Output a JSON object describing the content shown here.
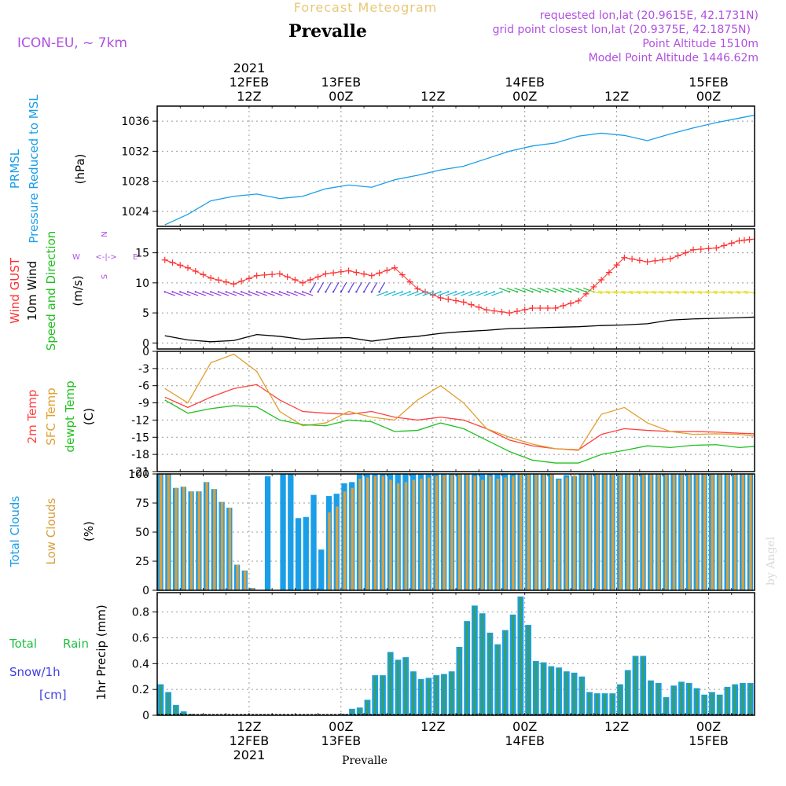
{
  "header": {
    "title_top": "Forecast Meteogram",
    "location": "Prevalle",
    "model": "ICON-EU, ~ 7km",
    "requested": "requested lon,lat (20.9615E, 42.1731N)",
    "grid": "grid point closest lon,lat (20.9375E, 42.1875N)",
    "point_alt": "Point Altitude 1510m",
    "model_alt": "Model Point Altitude 1446.62m",
    "footer_location": "Prevalle",
    "credit": "by Angel",
    "compass": {
      "n": "N",
      "s": "S",
      "w": "W",
      "e": "E",
      "arrow_h": "<-|->"
    }
  },
  "colors": {
    "pressure": "#1e90ff",
    "gust": "#ff3030",
    "wind": "#000000",
    "temp2m": "#ff4040",
    "sfc": "#e0a030",
    "dew": "#20c020",
    "total_cloud": "#1a9ee8",
    "low_cloud": "#d8a040",
    "rain": "#20c040",
    "snow": "#4040e0",
    "label_purple": "#b050e0"
  },
  "time_axis": {
    "top_labels": [
      {
        "hour": 12,
        "lines": [
          "2021",
          "12FEB",
          "12Z"
        ]
      },
      {
        "hour": 24,
        "lines": [
          "13FEB",
          "00Z"
        ]
      },
      {
        "hour": 36,
        "lines": [
          "12Z"
        ]
      },
      {
        "hour": 48,
        "lines": [
          "14FEB",
          "00Z"
        ]
      },
      {
        "hour": 60,
        "lines": [
          "12Z"
        ]
      },
      {
        "hour": 72,
        "lines": [
          "15FEB",
          "00Z"
        ]
      }
    ],
    "bottom_labels": [
      {
        "hour": 12,
        "lines": [
          "12Z",
          "12FEB",
          "2021"
        ]
      },
      {
        "hour": 24,
        "lines": [
          "00Z",
          "13FEB"
        ]
      },
      {
        "hour": 36,
        "lines": [
          "12Z"
        ]
      },
      {
        "hour": 48,
        "lines": [
          "00Z",
          "14FEB"
        ]
      },
      {
        "hour": 60,
        "lines": [
          "12Z"
        ]
      },
      {
        "hour": 72,
        "lines": [
          "00Z",
          "15FEB"
        ]
      }
    ]
  },
  "panels": {
    "pressure": {
      "label1": "PRMSL",
      "label2": "Pressure Reduced to MSL",
      "unit": "(hPa)",
      "ticks": [
        "1024",
        "1028",
        "1032",
        "1036"
      ]
    },
    "wind": {
      "label1": "Wind GUST",
      "label2": "10m Wind",
      "label3": "Speed and Direction",
      "unit": "(m/s)",
      "ticks": [
        "0",
        "5",
        "10",
        "15"
      ]
    },
    "temp": {
      "label1": "2m Temp",
      "label2": "SFC Temp",
      "label3": "dewpt Temp",
      "unit": "(C)",
      "ticks": [
        "-21",
        "-18",
        "-15",
        "-12",
        "-9",
        "-6",
        "-3",
        "0"
      ]
    },
    "cloud": {
      "label1": "Total Clouds",
      "label2": "Low Clouds",
      "unit": "(%)",
      "ticks": [
        "0",
        "25",
        "50",
        "75",
        "100"
      ]
    },
    "precip": {
      "label1": "Total",
      "label1b": "Rain",
      "label2": "Snow/1h",
      "label3": "[cm]",
      "unit": "1hr Precip (mm)",
      "ticks": [
        "0",
        "0.2",
        "0.4",
        "0.6",
        "0.8"
      ]
    }
  },
  "chart_data": [
    {
      "type": "line",
      "name": "pressure",
      "ylim": [
        1022,
        1038
      ],
      "x": [
        1,
        4,
        7,
        10,
        13,
        16,
        19,
        22,
        25,
        28,
        31,
        34,
        37,
        40,
        43,
        46,
        49,
        52,
        55,
        58,
        61,
        64,
        67,
        70,
        73,
        76,
        78
      ],
      "series": [
        {
          "values": [
            1022.2,
            1023.6,
            1025.4,
            1026.0,
            1026.3,
            1025.7,
            1026.0,
            1027.0,
            1027.5,
            1027.2,
            1028.2,
            1028.8,
            1029.5,
            1030.0,
            1031.0,
            1032.0,
            1032.7,
            1033.1,
            1034.0,
            1034.4,
            1034.1,
            1033.4,
            1034.3,
            1035.1,
            1035.8,
            1036.4,
            1036.8
          ]
        }
      ]
    },
    {
      "type": "line",
      "name": "wind",
      "ylim": [
        -1,
        19
      ],
      "x": [
        1,
        4,
        7,
        10,
        13,
        16,
        19,
        22,
        25,
        28,
        31,
        34,
        37,
        40,
        43,
        46,
        49,
        52,
        55,
        58,
        61,
        64,
        67,
        70,
        73,
        76,
        78
      ],
      "series": [
        {
          "values": [
            13.8,
            12.5,
            10.8,
            9.8,
            11.2,
            11.5,
            10.0,
            11.5,
            12.0,
            11.2,
            12.5,
            9.0,
            7.5,
            6.8,
            5.5,
            5.0,
            5.8,
            5.8,
            7.0,
            10.5,
            14.2,
            13.5,
            14.0,
            15.5,
            15.8,
            17.0,
            17.3
          ]
        },
        {
          "values": [
            1.2,
            0.5,
            0.2,
            0.4,
            1.4,
            1.1,
            0.6,
            0.8,
            0.9,
            0.3,
            0.8,
            1.1,
            1.6,
            1.9,
            2.1,
            2.4,
            2.5,
            2.6,
            2.7,
            2.9,
            3.0,
            3.2,
            3.8,
            4.0,
            4.1,
            4.2,
            4.3
          ]
        }
      ]
    },
    {
      "type": "line",
      "name": "temp",
      "ylim": [
        -21,
        0
      ],
      "x": [
        1,
        4,
        7,
        10,
        13,
        16,
        19,
        22,
        25,
        28,
        31,
        34,
        37,
        40,
        43,
        46,
        49,
        52,
        55,
        58,
        61,
        64,
        67,
        70,
        73,
        76,
        78
      ],
      "series": [
        {
          "values": [
            -8.0,
            -9.8,
            -8.0,
            -6.5,
            -5.8,
            -8.5,
            -10.5,
            -10.8,
            -11.0,
            -10.5,
            -11.5,
            -12.0,
            -11.5,
            -12.0,
            -13.5,
            -15.5,
            -16.5,
            -17.0,
            -17.2,
            -14.5,
            -13.5,
            -13.8,
            -14.0,
            -14.0,
            -14.1,
            -14.3,
            -14.4
          ]
        },
        {
          "values": [
            -6.5,
            -9.0,
            -2.0,
            -0.5,
            -3.5,
            -10.5,
            -13.0,
            -12.5,
            -10.5,
            -11.5,
            -12.0,
            -8.5,
            -6.0,
            -9.0,
            -13.5,
            -15.0,
            -16.2,
            -17.0,
            -17.3,
            -11.0,
            -9.8,
            -12.5,
            -14.0,
            -14.5,
            -14.4,
            -14.5,
            -14.8
          ]
        },
        {
          "values": [
            -8.5,
            -10.8,
            -10.0,
            -9.5,
            -9.7,
            -12.0,
            -12.8,
            -13.0,
            -12.0,
            -12.3,
            -14.0,
            -13.8,
            -12.5,
            -13.5,
            -15.5,
            -17.5,
            -19.0,
            -19.5,
            -19.5,
            -18.0,
            -17.3,
            -16.5,
            -16.8,
            -16.4,
            -16.3,
            -16.8,
            -16.6
          ]
        }
      ]
    },
    {
      "type": "bar",
      "name": "clouds",
      "ylim": [
        0,
        100
      ],
      "x": [
        1,
        2,
        3,
        4,
        5,
        6,
        7,
        8,
        9,
        10,
        11,
        12,
        13,
        14,
        15,
        16,
        17,
        18,
        19,
        20,
        21,
        22,
        23,
        24,
        25,
        26,
        27,
        28,
        29,
        30,
        31,
        32,
        33,
        34,
        35,
        36,
        37,
        38,
        39,
        40,
        41,
        42,
        43,
        44,
        45,
        46,
        47,
        48,
        49,
        50,
        51,
        52,
        53,
        54,
        55,
        56,
        57,
        58,
        59,
        60,
        61,
        62,
        63,
        64,
        65,
        66,
        67,
        68,
        69,
        70,
        71,
        72,
        73,
        74,
        75,
        76,
        77,
        78
      ],
      "series": [
        {
          "name": "Total Clouds",
          "values": [
            100,
            100,
            88,
            89,
            85,
            85,
            93,
            87,
            76,
            71,
            22,
            17,
            2,
            0,
            98,
            0,
            100,
            100,
            62,
            63,
            82,
            35,
            81,
            83,
            92,
            93,
            100,
            100,
            100,
            100,
            100,
            100,
            100,
            100,
            100,
            100,
            100,
            100,
            100,
            100,
            100,
            100,
            100,
            100,
            100,
            100,
            100,
            100,
            100,
            100,
            100,
            100,
            96,
            99,
            98,
            100,
            100,
            100,
            100,
            100,
            100,
            100,
            100,
            100,
            100,
            100,
            100,
            100,
            100,
            100,
            100,
            100,
            100,
            100,
            100,
            100,
            100,
            100
          ]
        },
        {
          "name": "Low Clouds",
          "values": [
            100,
            100,
            88,
            89,
            85,
            85,
            93,
            87,
            76,
            71,
            22,
            17,
            2,
            0,
            0,
            0,
            0,
            0,
            0,
            0,
            0,
            0,
            67,
            72,
            85,
            88,
            96,
            97,
            98,
            98,
            95,
            92,
            93,
            95,
            96,
            97,
            98,
            99,
            99,
            100,
            100,
            98,
            95,
            98,
            96,
            97,
            98,
            100,
            100,
            100,
            100,
            100,
            95,
            97,
            99,
            100,
            100,
            100,
            100,
            100,
            100,
            100,
            100,
            100,
            100,
            100,
            100,
            100,
            100,
            100,
            100,
            100,
            100,
            100,
            100,
            100,
            100,
            100
          ]
        }
      ]
    },
    {
      "type": "bar",
      "name": "precip",
      "ylim": [
        0,
        0.95
      ],
      "x": [
        1,
        2,
        3,
        4,
        5,
        6,
        7,
        8,
        9,
        10,
        11,
        12,
        13,
        14,
        15,
        16,
        17,
        18,
        19,
        20,
        21,
        22,
        23,
        24,
        25,
        26,
        27,
        28,
        29,
        30,
        31,
        32,
        33,
        34,
        35,
        36,
        37,
        38,
        39,
        40,
        41,
        42,
        43,
        44,
        45,
        46,
        47,
        48,
        49,
        50,
        51,
        52,
        53,
        54,
        55,
        56,
        57,
        58,
        59,
        60,
        61,
        62,
        63,
        64,
        65,
        66,
        67,
        68,
        69,
        70,
        71,
        72,
        73,
        74,
        75,
        76,
        77,
        78
      ],
      "series": [
        {
          "name": "Total",
          "values": [
            0.24,
            0.18,
            0.08,
            0.03,
            0.01,
            0,
            0,
            0,
            0,
            0,
            0,
            0,
            0,
            0,
            0,
            0,
            0,
            0,
            0,
            0,
            0,
            0,
            0,
            0,
            0.01,
            0.05,
            0.06,
            0.12,
            0.31,
            0.31,
            0.49,
            0.43,
            0.45,
            0.34,
            0.28,
            0.29,
            0.31,
            0.32,
            0.34,
            0.53,
            0.73,
            0.85,
            0.79,
            0.64,
            0.55,
            0.66,
            0.78,
            0.92,
            0.7,
            0.42,
            0.41,
            0.38,
            0.37,
            0.34,
            0.33,
            0.3,
            0.18,
            0.17,
            0.17,
            0.17,
            0.24,
            0.35,
            0.46,
            0.46,
            0.27,
            0.25,
            0.14,
            0.23,
            0.26,
            0.25,
            0.21,
            0.16,
            0.18,
            0.16,
            0.22,
            0.24,
            0.25,
            0.25
          ]
        }
      ]
    }
  ]
}
